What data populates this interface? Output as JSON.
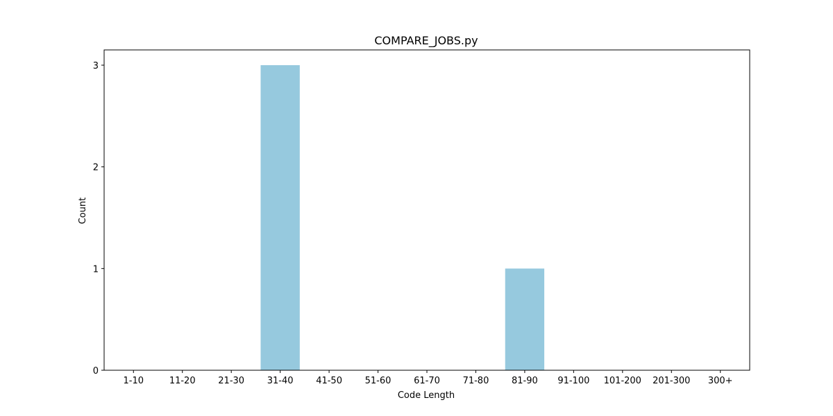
{
  "chart_data": {
    "type": "bar",
    "title": "COMPARE_JOBS.py",
    "xlabel": "Code Length",
    "ylabel": "Count",
    "categories": [
      "1-10",
      "11-20",
      "21-30",
      "31-40",
      "41-50",
      "51-60",
      "61-70",
      "71-80",
      "81-90",
      "91-100",
      "101-200",
      "201-300",
      "300+"
    ],
    "values": [
      0,
      0,
      0,
      3,
      0,
      0,
      0,
      0,
      1,
      0,
      0,
      0,
      0
    ],
    "yticks": [
      0,
      1,
      2,
      3
    ],
    "ylim": [
      0,
      3.15
    ],
    "bar_color": "#96c9de",
    "grid": false,
    "legend": "none"
  }
}
